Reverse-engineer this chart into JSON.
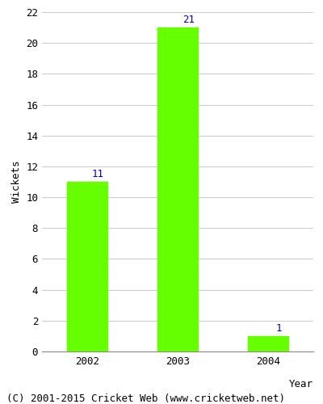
{
  "categories": [
    "2002",
    "2003",
    "2004"
  ],
  "values": [
    11,
    21,
    1
  ],
  "bar_color": "#66ff00",
  "bar_edge_color": "#66ff00",
  "ylabel": "Wickets",
  "xlabel": "Year",
  "ylim": [
    0,
    22
  ],
  "yticks": [
    0,
    2,
    4,
    6,
    8,
    10,
    12,
    14,
    16,
    18,
    20,
    22
  ],
  "annotation_color": "#0000cc",
  "annotation_fontsize": 9,
  "axis_label_fontsize": 9,
  "tick_fontsize": 9,
  "grid_color": "#cccccc",
  "background_color": "#ffffff",
  "footer_text": "(C) 2001-2015 Cricket Web (www.cricketweb.net)",
  "footer_fontsize": 9,
  "bar_width": 0.45
}
